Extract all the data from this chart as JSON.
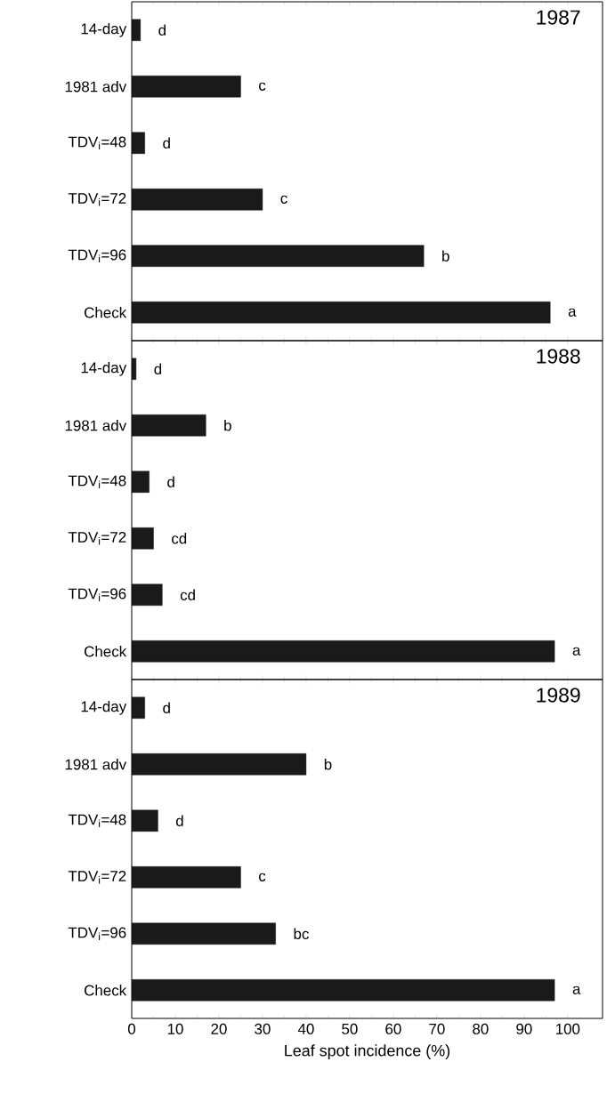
{
  "chart_data": [
    {
      "type": "bar",
      "orientation": "horizontal",
      "title": "1987",
      "categories": [
        "14-day",
        "1981 adv",
        "TDV$_{i}$=48",
        "TDV$_{i}$=72",
        "TDV$_{i}$=96",
        "Check"
      ],
      "values": [
        2,
        25,
        3,
        30,
        67,
        96
      ],
      "value_labels": [
        "d",
        "c",
        "d",
        "c",
        "b",
        "a"
      ],
      "color": "#1a1a1a",
      "xlim": [
        0,
        108
      ],
      "xticks": [
        0,
        10,
        20,
        30,
        40,
        50,
        60,
        70,
        80,
        90,
        100
      ],
      "tick_labels": "y"
    },
    {
      "type": "bar",
      "orientation": "horizontal",
      "title": "1988",
      "categories": [
        "14-day",
        "1981 adv",
        "TDV$_{i}$=48",
        "TDV$_{i}$=72",
        "TDV$_{i}$=96",
        "Check"
      ],
      "values": [
        1,
        17,
        4,
        5,
        7,
        97
      ],
      "value_labels": [
        "d",
        "b",
        "d",
        "cd",
        "cd",
        "a"
      ],
      "color": "#1a1a1a",
      "xlim": [
        0,
        108
      ],
      "xticks": [
        0,
        10,
        20,
        30,
        40,
        50,
        60,
        70,
        80,
        90,
        100
      ],
      "tick_labels": "y"
    },
    {
      "type": "bar",
      "orientation": "horizontal",
      "title": "1989",
      "xlabel": "Leaf spot incidence (%)",
      "categories": [
        "14-day",
        "1981 adv",
        "TDV$_{i}$=48",
        "TDV$_{i}$=72",
        "TDV$_{i}$=96",
        "Check"
      ],
      "values": [
        3,
        40,
        6,
        25,
        33,
        97
      ],
      "value_labels": [
        "d",
        "b",
        "d",
        "c",
        "bc",
        "a"
      ],
      "color": "#1a1a1a",
      "xlim": [
        0,
        108
      ],
      "xticks": [
        0,
        10,
        20,
        30,
        40,
        50,
        60,
        70,
        80,
        90,
        100
      ]
    }
  ]
}
